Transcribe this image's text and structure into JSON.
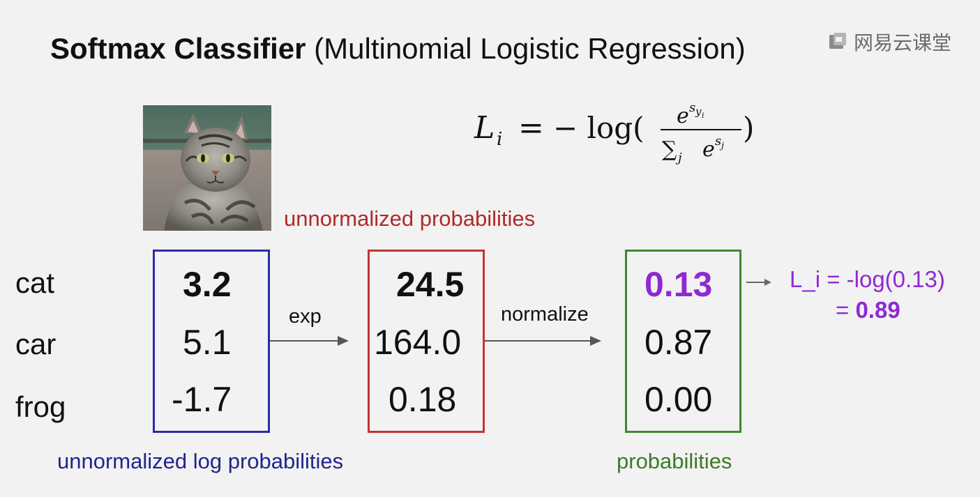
{
  "title": {
    "bold": "Softmax Classifier",
    "normal": "(Multinomial Logistic Regression)"
  },
  "watermark": {
    "text": "网易云课堂",
    "icon": "netease-cloud-classroom-logo-icon"
  },
  "image": {
    "icon": "cat-photo"
  },
  "formula": {
    "lhs": "L",
    "lhs_sub": "i",
    "equals": "=",
    "minus_log": "− log(",
    "num_base": "e",
    "num_sup": "s",
    "num_sup_sub": "y",
    "num_sup_sub_sub": "i",
    "den_sum": "∑",
    "den_sum_sub": "j",
    "den_base": "e",
    "den_sup": "s",
    "den_sup_sub": "j",
    "close": ")"
  },
  "labels": {
    "unnormalized_probabilities": "unnormalized probabilities",
    "unnormalized_log_probabilities": "unnormalized log probabilities",
    "probabilities": "probabilities"
  },
  "operations": {
    "exp": "exp",
    "normalize": "normalize"
  },
  "classes": [
    "cat",
    "car",
    "frog"
  ],
  "scores": [
    "3.2",
    "5.1",
    "-1.7"
  ],
  "exp_scores": [
    "24.5",
    "164.0",
    "0.18"
  ],
  "probs": [
    "0.13",
    "0.87",
    "0.00"
  ],
  "loss": {
    "line1": "L_i = -log(0.13)",
    "line2_prefix": "= ",
    "line2_value": "0.89"
  },
  "colors": {
    "scores_box": "#2d2ba6",
    "exp_box": "#c23434",
    "probs_box": "#3d8a2e",
    "highlight": "#8e2ad1"
  }
}
